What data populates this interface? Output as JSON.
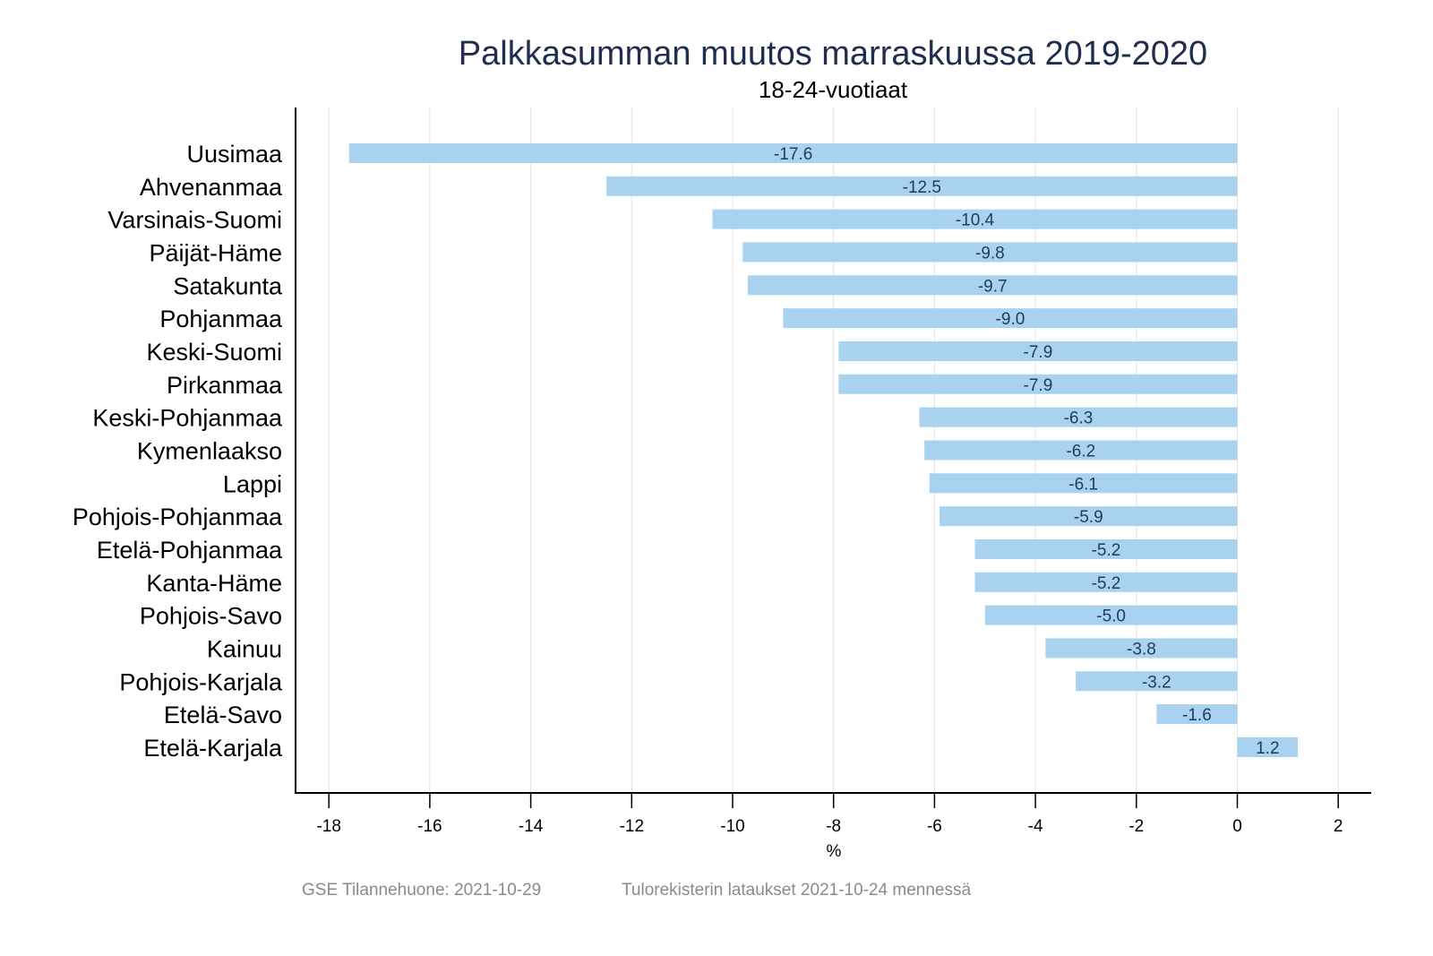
{
  "chart_data": {
    "type": "bar",
    "orientation": "horizontal",
    "title": "Palkkasumman muutos marraskuussa 2019-2020",
    "subtitle": "18-24-vuotiaat",
    "xlabel": "%",
    "ylabel": "",
    "xlim": [
      -18.6,
      2.6
    ],
    "xticks": [
      -18,
      -16,
      -14,
      -12,
      -10,
      -8,
      -6,
      -4,
      -2,
      0,
      2
    ],
    "grid": true,
    "legend": "none",
    "bar_color": "#a8d2f0",
    "categories": [
      "Uusimaa",
      "Ahvenanmaa",
      "Varsinais-Suomi",
      "Päijät-Häme",
      "Satakunta",
      "Pohjanmaa",
      "Keski-Suomi",
      "Pirkanmaa",
      "Keski-Pohjanmaa",
      "Kymenlaakso",
      "Lappi",
      "Pohjois-Pohjanmaa",
      "Etelä-Pohjanmaa",
      "Kanta-Häme",
      "Pohjois-Savo",
      "Kainuu",
      "Pohjois-Karjala",
      "Etelä-Savo",
      "Etelä-Karjala"
    ],
    "values": [
      -17.6,
      -12.5,
      -10.4,
      -9.8,
      -9.7,
      -9.0,
      -7.9,
      -7.9,
      -6.3,
      -6.2,
      -6.1,
      -5.9,
      -5.2,
      -5.2,
      -5.0,
      -3.8,
      -3.2,
      -1.6,
      1.2
    ],
    "data_labels": [
      "-17.6",
      "-12.5",
      "-10.4",
      "-9.8",
      "-9.7",
      "-9.0",
      "-7.9",
      "-7.9",
      "-6.3",
      "-6.2",
      "-6.1",
      "-5.9",
      "-5.2",
      "-5.2",
      "-5.0",
      "-3.8",
      "-3.2",
      "-1.6",
      "1.2"
    ]
  },
  "footer": {
    "source": "GSE Tilannehuone: 2021-10-29",
    "note": "Tulorekisterin lataukset 2021-10-24 mennessä"
  }
}
